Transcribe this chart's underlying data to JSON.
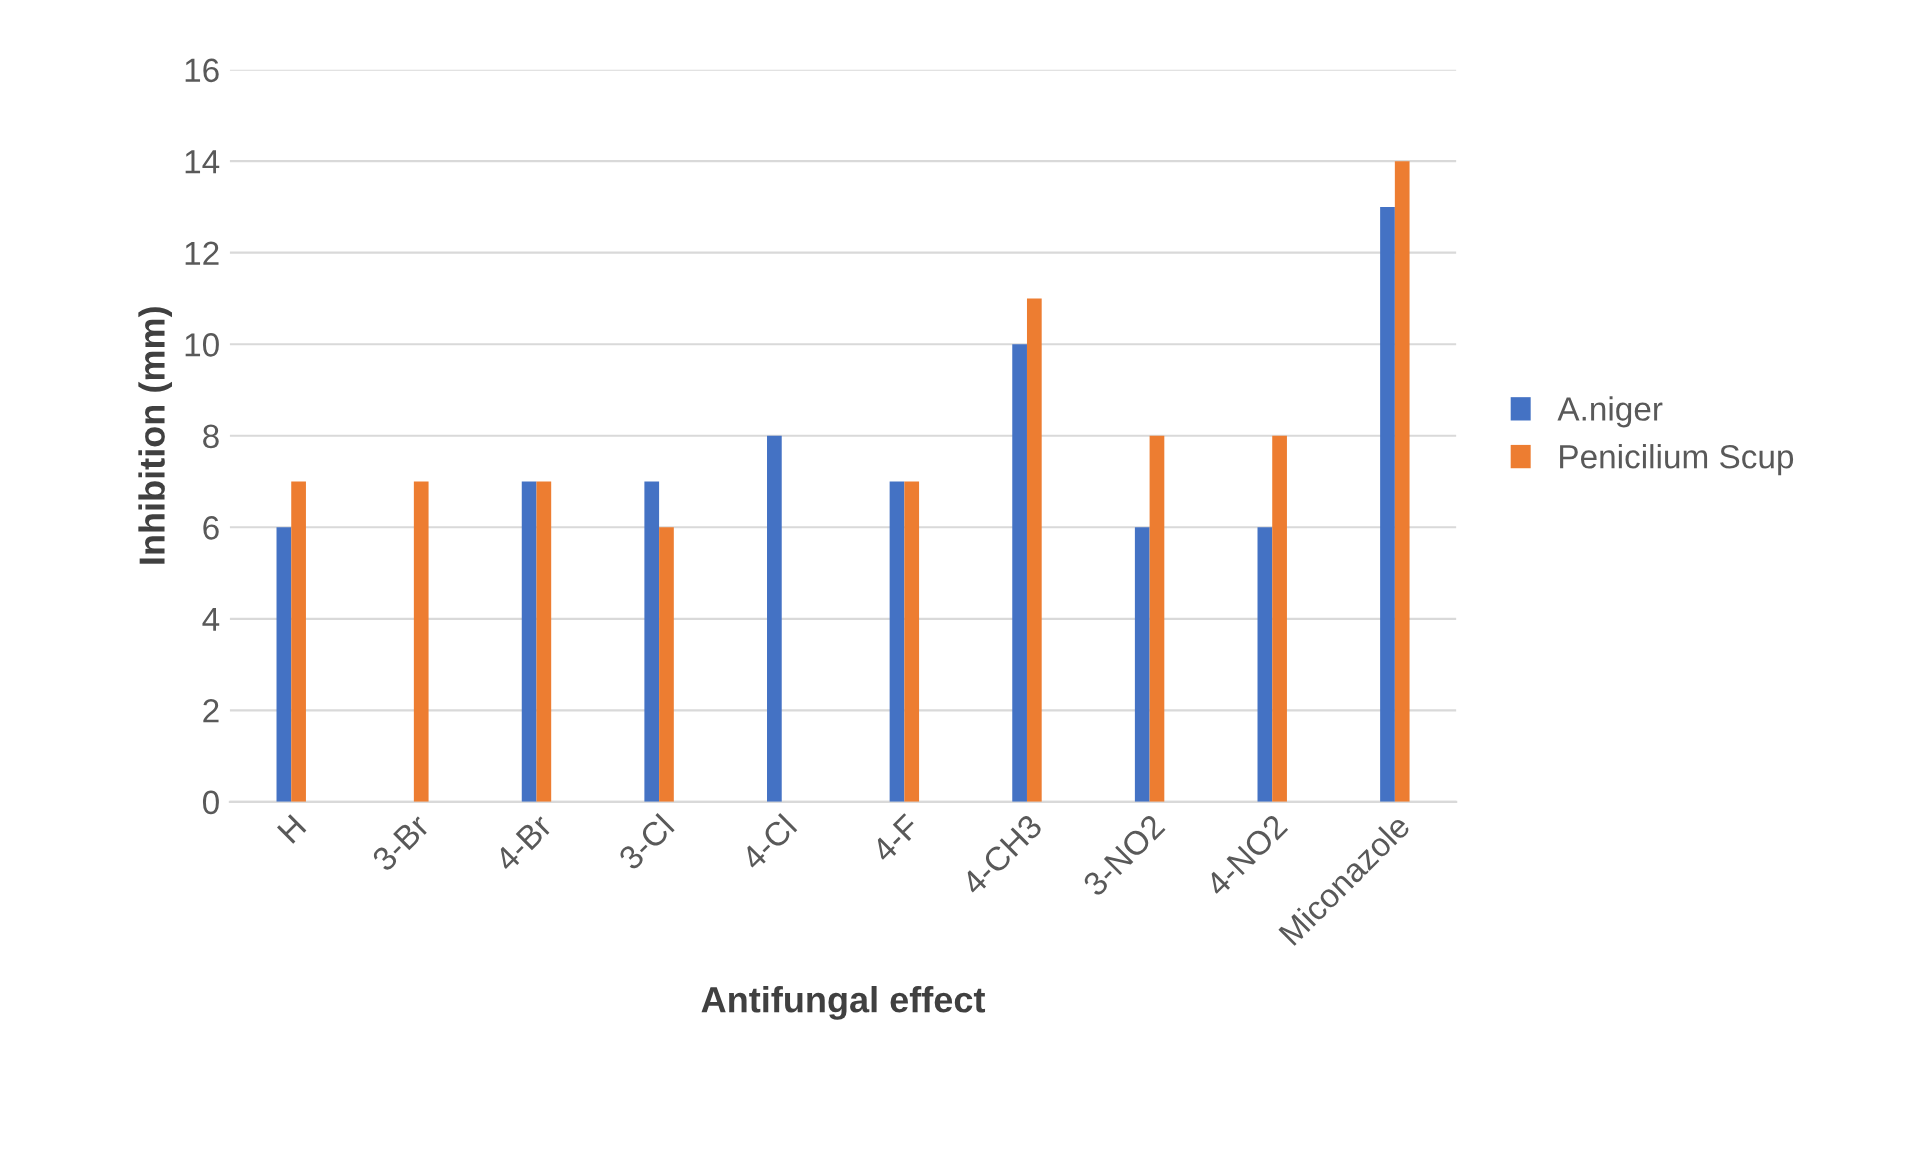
{
  "chart_data": {
    "type": "bar",
    "xlabel": "Antifungal effect",
    "ylabel": "Inhibition (mm)",
    "categories": [
      "H",
      "3-Br",
      "4-Br",
      "3-Cl",
      "4-Cl",
      "4-F",
      "4-CH3",
      "3-NO2",
      "4-NO2",
      "Miconazole"
    ],
    "series": [
      {
        "name": "A.niger",
        "color": "#4472c4",
        "values": [
          6,
          0,
          7,
          7,
          8,
          7,
          10,
          6,
          6,
          13
        ]
      },
      {
        "name": "Penicilium Scup",
        "color": "#ed7d31",
        "values": [
          7,
          7,
          7,
          6,
          0,
          7,
          11,
          8,
          8,
          14
        ]
      }
    ],
    "ylim": [
      0,
      16
    ],
    "yticks": [
      0,
      2,
      4,
      6,
      8,
      10,
      12,
      14,
      16
    ],
    "grid": "y",
    "legend": "right"
  }
}
